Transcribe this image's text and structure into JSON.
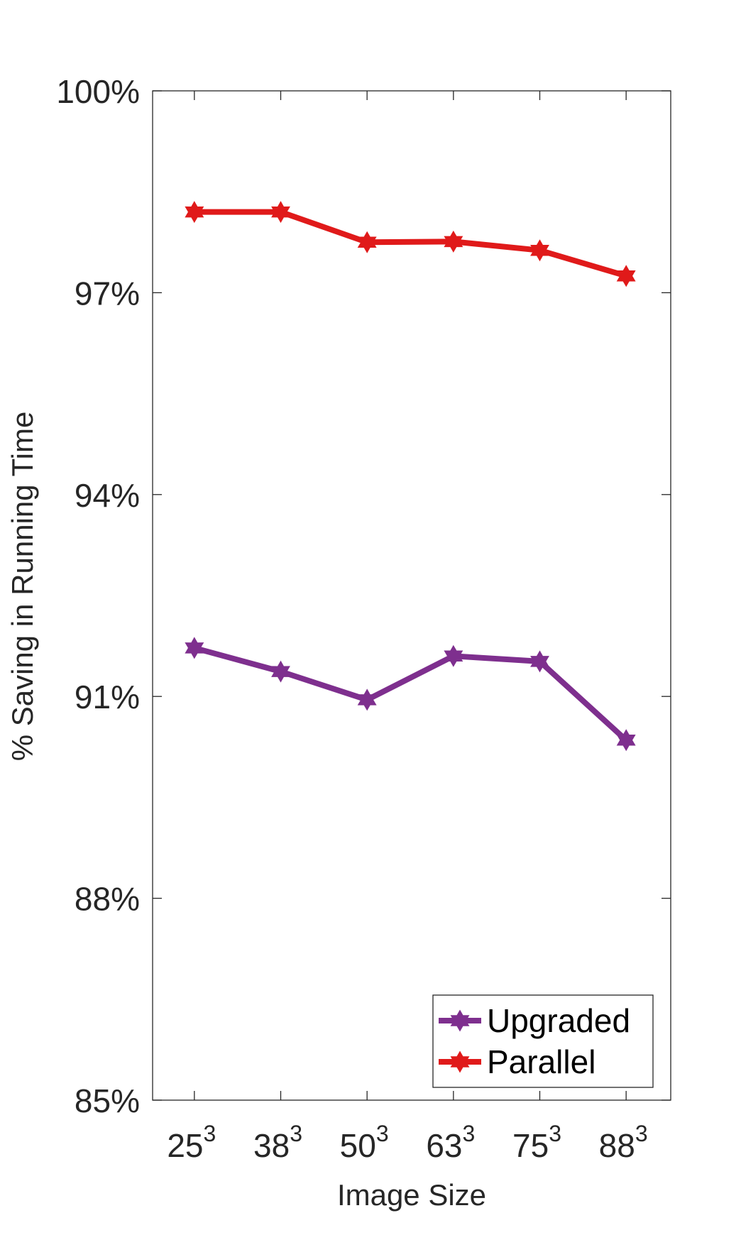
{
  "chart_data": {
    "type": "line",
    "categories": [
      "25",
      "38",
      "50",
      "63",
      "75",
      "88"
    ],
    "category_superscript": "3",
    "xlabel": "Image Size",
    "ylabel": "% Saving in Running Time",
    "ylim": [
      85,
      100
    ],
    "yticks": [
      85,
      88,
      91,
      94,
      97,
      100
    ],
    "ytick_suffix": "%",
    "grid": false,
    "legend_position": "bottom-right",
    "series": [
      {
        "name": "Upgraded",
        "color": "#7E2F8E",
        "marker": "hexagram",
        "values": [
          91.72,
          91.37,
          90.95,
          91.6,
          91.52,
          90.35
        ]
      },
      {
        "name": "Parallel",
        "color": "#E01A1A",
        "marker": "hexagram",
        "values": [
          98.2,
          98.2,
          97.75,
          97.76,
          97.63,
          97.25
        ]
      }
    ]
  }
}
